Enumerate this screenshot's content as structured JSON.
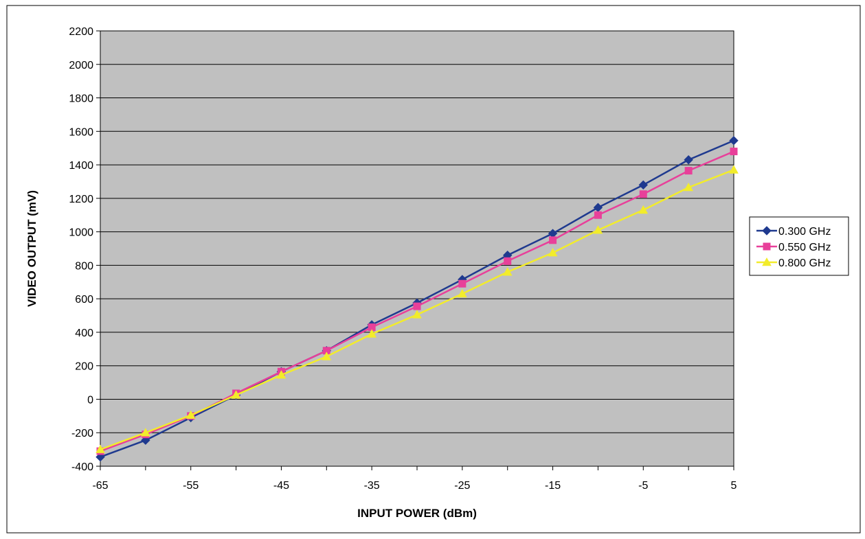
{
  "chart_data": {
    "type": "line",
    "title": "",
    "xlabel": "INPUT POWER (dBm)",
    "ylabel": "VIDEO OUTPUT (mV)",
    "xlim": [
      -65,
      5
    ],
    "ylim": [
      -400,
      2200
    ],
    "x_ticks": [
      "-65",
      "-55",
      "-45",
      "-35",
      "-25",
      "-15",
      "-5",
      "5"
    ],
    "y_ticks": [
      "2200",
      "2000",
      "1800",
      "1600",
      "1400",
      "1200",
      "1000",
      "800",
      "600",
      "400",
      "200",
      "0",
      "-200",
      "-400"
    ],
    "grid": "horizontal",
    "plot_background": "#c0c0c0",
    "legend_position": "right",
    "x": [
      -65,
      -60,
      -55,
      -50,
      -45,
      -40,
      -35,
      -30,
      -25,
      -20,
      -15,
      -10,
      -5,
      0,
      5
    ],
    "series": [
      {
        "name": "0.300 GHz",
        "color": "#1f3a8f",
        "marker": "diamond",
        "values": [
          -345,
          -245,
          -110,
          25,
          165,
          290,
          445,
          575,
          715,
          860,
          990,
          1145,
          1280,
          1430,
          1545
        ]
      },
      {
        "name": "0.550 GHz",
        "color": "#e8409a",
        "marker": "square",
        "values": [
          -310,
          -210,
          -100,
          35,
          165,
          290,
          430,
          555,
          690,
          825,
          950,
          1100,
          1225,
          1365,
          1480
        ]
      },
      {
        "name": "0.800 GHz",
        "color": "#f2ec2b",
        "marker": "triangle",
        "values": [
          -300,
          -200,
          -95,
          25,
          145,
          255,
          390,
          505,
          630,
          760,
          875,
          1010,
          1130,
          1265,
          1370
        ]
      }
    ]
  }
}
